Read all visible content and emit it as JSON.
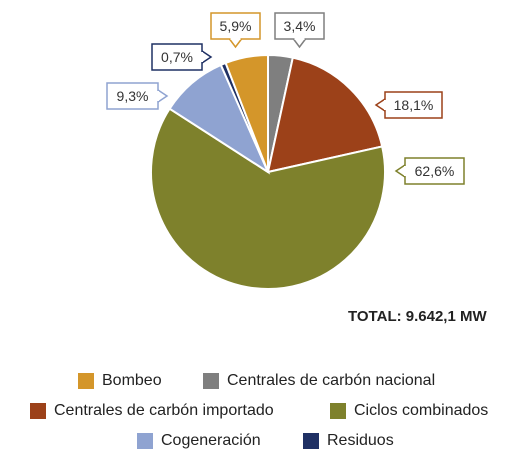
{
  "chart_data": {
    "type": "pie",
    "total_label": "TOTAL: 9.642,1 MW",
    "slices": [
      {
        "name": "Centrales de carbón nacional",
        "value": 3.4,
        "label": "3,4%",
        "color": "#7f7f7f"
      },
      {
        "name": "Centrales de carbón importado",
        "value": 18.1,
        "label": "18,1%",
        "color": "#9c4119"
      },
      {
        "name": "Ciclos combinados",
        "value": 62.6,
        "label": "62,6%",
        "color": "#7e812c"
      },
      {
        "name": "Cogeneración",
        "value": 9.3,
        "label": "9,3%",
        "color": "#8fa3d1"
      },
      {
        "name": "Residuos",
        "value": 0.7,
        "label": "0,7%",
        "color": "#1f3064"
      },
      {
        "name": "Bombeo",
        "value": 5.9,
        "label": "5,9%",
        "color": "#d4962a"
      }
    ],
    "legend": [
      {
        "label": "Bombeo",
        "color": "#d4962a"
      },
      {
        "label": "Centrales de carbón nacional",
        "color": "#7f7f7f"
      },
      {
        "label": "Centrales de carbón importado",
        "color": "#9c4119"
      },
      {
        "label": "Ciclos combinados",
        "color": "#7e812c"
      },
      {
        "label": "Cogeneración",
        "color": "#8fa3d1"
      },
      {
        "label": "Residuos",
        "color": "#1f3064"
      }
    ]
  }
}
